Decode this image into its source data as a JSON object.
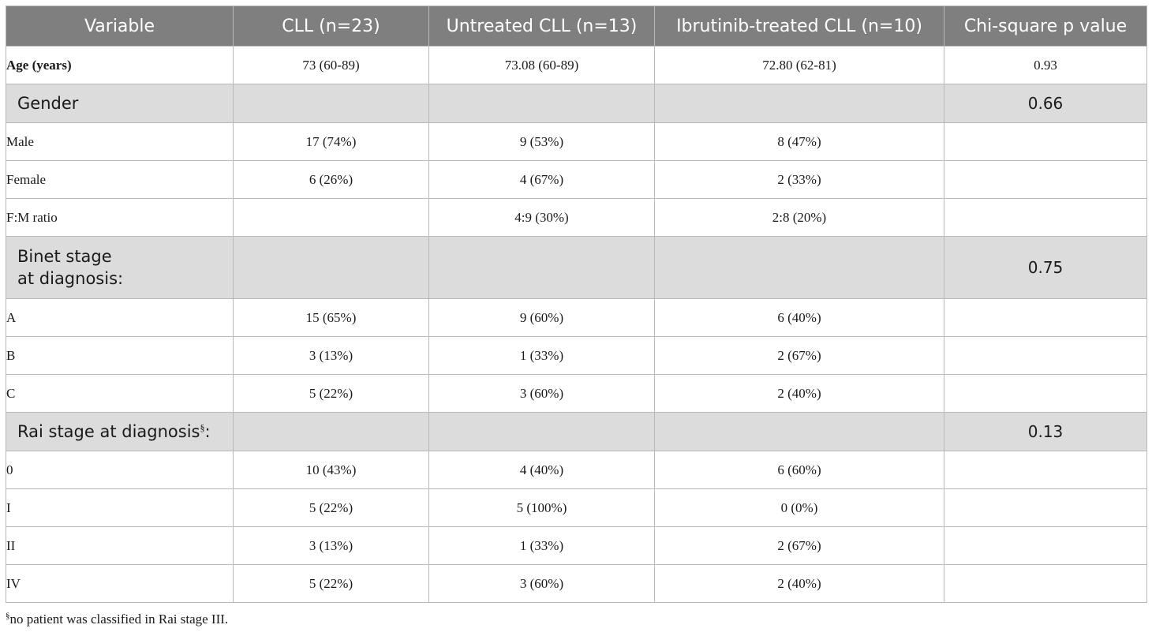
{
  "headers": [
    "Variable",
    "CLL (n=23)",
    "Untreated CLL (n=13)",
    "Ibrutinib-treated CLL (n=10)",
    "Chi-square p value"
  ],
  "rows": [
    {
      "type": "data",
      "bold": true,
      "label": "Age (years)",
      "cll": "73 (60-89)",
      "untreated": "73.08 (60-89)",
      "ibrutinib": "72.80 (62-81)",
      "p": "0.93"
    },
    {
      "type": "section",
      "label": "Gender",
      "p": "0.66"
    },
    {
      "type": "data",
      "label": "Male",
      "cll": "17 (74%)",
      "untreated": "9 (53%)",
      "ibrutinib": "8 (47%)",
      "p": ""
    },
    {
      "type": "data",
      "label": "Female",
      "cll": "6 (26%)",
      "untreated": "4 (67%)",
      "ibrutinib": "2 (33%)",
      "p": ""
    },
    {
      "type": "data",
      "label": "F:M ratio",
      "cll": "",
      "untreated": "4:9 (30%)",
      "ibrutinib": "2:8 (20%)",
      "p": ""
    },
    {
      "type": "section",
      "tall": true,
      "label": "Binet stage\nat diagnosis:",
      "p": "0.75"
    },
    {
      "type": "data",
      "label": "A",
      "cll": "15 (65%)",
      "untreated": "9 (60%)",
      "ibrutinib": "6 (40%)",
      "p": ""
    },
    {
      "type": "data",
      "label": "B",
      "cll": "3 (13%)",
      "untreated": "1 (33%)",
      "ibrutinib": "2 (67%)",
      "p": ""
    },
    {
      "type": "data",
      "label": "C",
      "cll": "5 (22%)",
      "untreated": "3 (60%)",
      "ibrutinib": "2 (40%)",
      "p": ""
    },
    {
      "type": "section",
      "label": "Rai stage at diagnosis",
      "mark": "§",
      "suffix": ":",
      "p": "0.13"
    },
    {
      "type": "data",
      "label": "0",
      "cll": "10 (43%)",
      "untreated": "4 (40%)",
      "ibrutinib": "6 (60%)",
      "p": ""
    },
    {
      "type": "data",
      "label": "I",
      "cll": "5 (22%)",
      "untreated": "5 (100%)",
      "ibrutinib": "0 (0%)",
      "p": ""
    },
    {
      "type": "data",
      "label": "II",
      "cll": "3 (13%)",
      "untreated": "1 (33%)",
      "ibrutinib": "2 (67%)",
      "p": ""
    },
    {
      "type": "data",
      "label": "IV",
      "cll": "5 (22%)",
      "untreated": "3 (60%)",
      "ibrutinib": "2 (40%)",
      "p": ""
    }
  ],
  "footnote": {
    "mark": "§",
    "text": "no patient was classified in Rai stage III."
  },
  "colors": {
    "header_bg": "#7f7f7f",
    "header_text": "#ffffff",
    "section_bg": "#dcdcdc",
    "border": "#b9b9b9"
  }
}
